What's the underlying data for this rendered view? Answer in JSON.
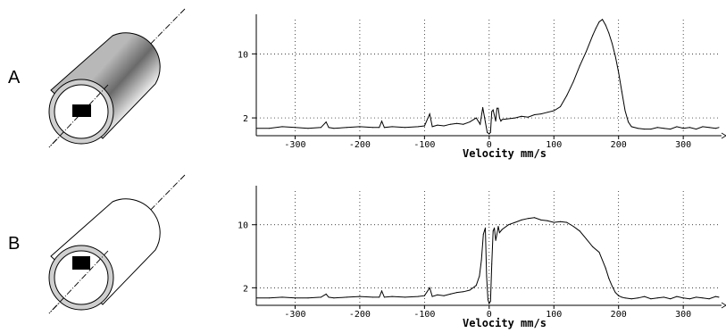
{
  "panels": [
    {
      "label": "A"
    },
    {
      "label": "B"
    }
  ],
  "chart_data": [
    {
      "type": "line",
      "xlabel": "Velocity mm/s",
      "xlim": [
        -360,
        355
      ],
      "ylim": [
        0,
        14.5
      ],
      "grid": true,
      "xticks": [
        -300,
        -200,
        -100,
        0,
        100,
        200,
        300
      ],
      "yticks": [
        2,
        10
      ],
      "series": [
        {
          "x": [
            -360,
            -340,
            -320,
            -300,
            -280,
            -260,
            -252,
            -248,
            -240,
            -220,
            -200,
            -180,
            -170,
            -166,
            -162,
            -150,
            -130,
            -110,
            -100,
            -92,
            -88,
            -84,
            -80,
            -70,
            -60,
            -50,
            -40,
            -30,
            -20,
            -14,
            -10,
            -6,
            -3,
            0,
            2,
            4,
            6,
            10,
            12,
            14,
            16,
            18,
            20,
            30,
            40,
            50,
            60,
            70,
            80,
            90,
            100,
            110,
            120,
            130,
            140,
            150,
            160,
            165,
            170,
            175,
            180,
            185,
            190,
            195,
            200,
            205,
            210,
            215,
            220,
            230,
            240,
            250,
            260,
            270,
            280,
            290,
            300,
            310,
            320,
            330,
            340,
            350,
            355
          ],
          "y": [
            0.7,
            0.7,
            0.9,
            0.8,
            0.7,
            0.8,
            1.5,
            0.8,
            0.7,
            0.8,
            0.9,
            0.8,
            0.8,
            1.6,
            0.8,
            0.9,
            0.8,
            0.9,
            1.0,
            2.5,
            0.9,
            1.0,
            1.1,
            1.0,
            1.2,
            1.3,
            1.2,
            1.5,
            2.0,
            1.2,
            3.3,
            1.5,
            0.2,
            0.0,
            0.2,
            2.8,
            3.0,
            1.6,
            3.2,
            3.2,
            2.0,
            1.6,
            1.8,
            1.9,
            2.0,
            2.2,
            2.1,
            2.4,
            2.5,
            2.7,
            2.9,
            3.4,
            4.8,
            6.5,
            8.5,
            10.3,
            12.3,
            13.2,
            14.0,
            14.3,
            13.6,
            12.6,
            11.3,
            9.7,
            7.7,
            5.3,
            2.9,
            1.5,
            0.9,
            0.7,
            0.6,
            0.6,
            0.8,
            0.7,
            0.6,
            0.9,
            0.7,
            0.8,
            0.6,
            0.9,
            0.8,
            0.7,
            0.8
          ]
        }
      ]
    },
    {
      "type": "line",
      "xlabel": "Velocity mm/s",
      "xlim": [
        -360,
        355
      ],
      "ylim": [
        0,
        14.5
      ],
      "grid": true,
      "xticks": [
        -300,
        -200,
        -100,
        0,
        100,
        200,
        300
      ],
      "yticks": [
        2,
        10
      ],
      "series": [
        {
          "x": [
            -360,
            -340,
            -320,
            -300,
            -280,
            -260,
            -252,
            -248,
            -240,
            -220,
            -200,
            -180,
            -170,
            -166,
            -162,
            -150,
            -130,
            -110,
            -100,
            -92,
            -88,
            -84,
            -80,
            -70,
            -60,
            -50,
            -40,
            -30,
            -20,
            -15,
            -12,
            -9,
            -6,
            -4,
            -2,
            0,
            2,
            4,
            6,
            8,
            10,
            12,
            14,
            16,
            20,
            30,
            40,
            50,
            60,
            70,
            80,
            90,
            100,
            110,
            120,
            130,
            140,
            150,
            160,
            170,
            180,
            185,
            190,
            195,
            200,
            205,
            210,
            220,
            230,
            240,
            250,
            260,
            270,
            280,
            290,
            300,
            310,
            320,
            330,
            340,
            350,
            355
          ],
          "y": [
            0.7,
            0.7,
            0.8,
            0.7,
            0.7,
            0.8,
            1.2,
            0.8,
            0.7,
            0.8,
            0.9,
            0.8,
            0.8,
            1.6,
            0.8,
            0.9,
            0.8,
            0.9,
            1.0,
            2.0,
            0.9,
            1.0,
            1.1,
            1.0,
            1.2,
            1.4,
            1.5,
            1.7,
            2.3,
            3.5,
            5.5,
            8.8,
            9.6,
            3.5,
            0.5,
            0.0,
            0.3,
            5.0,
            9.2,
            9.6,
            8.0,
            8.8,
            9.8,
            9.0,
            9.4,
            10.0,
            10.3,
            10.6,
            10.8,
            10.9,
            10.6,
            10.5,
            10.3,
            10.4,
            10.3,
            9.8,
            9.2,
            8.2,
            7.2,
            6.5,
            4.5,
            3.2,
            2.2,
            1.4,
            1.0,
            0.8,
            0.7,
            0.6,
            0.7,
            0.9,
            0.6,
            0.7,
            0.8,
            0.6,
            0.9,
            0.7,
            0.6,
            0.8,
            0.7,
            0.6,
            0.9,
            0.8
          ]
        }
      ]
    }
  ]
}
